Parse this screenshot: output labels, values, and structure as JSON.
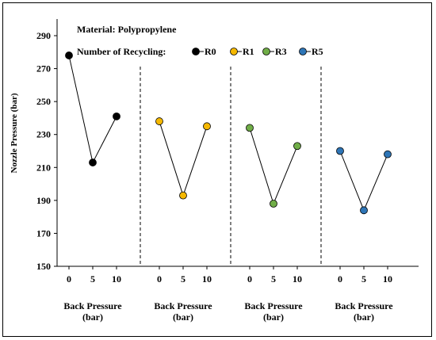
{
  "chart_data": {
    "type": "line",
    "ylabel": "Nozzle Pressure (bar)",
    "ylim": [
      150,
      290
    ],
    "yticks": [
      "150",
      "170",
      "190",
      "210",
      "230",
      "250",
      "270",
      "290"
    ],
    "annotations": {
      "material": "Material: Polypropylene",
      "legend_title": "Number of Recycling:"
    },
    "panels": [
      {
        "series": "R0",
        "color": "#000000",
        "x": [
          "0",
          "5",
          "10"
        ],
        "values": [
          278,
          213,
          241
        ],
        "xlabel_line1": "Back Pressure",
        "xlabel_line2": "(bar)"
      },
      {
        "series": "R1",
        "color": "#f5b800",
        "x": [
          "0",
          "5",
          "10"
        ],
        "values": [
          238,
          193,
          235
        ],
        "xlabel_line1": "Back Pressure",
        "xlabel_line2": "(bar)"
      },
      {
        "series": "R3",
        "color": "#70ad47",
        "x": [
          "0",
          "5",
          "10"
        ],
        "values": [
          234,
          188,
          223
        ],
        "xlabel_line1": "Back Pressure",
        "xlabel_line2": "(bar)"
      },
      {
        "series": "R5",
        "color": "#2e75b6",
        "x": [
          "0",
          "5",
          "10"
        ],
        "values": [
          220,
          184,
          218
        ],
        "xlabel_line1": "Back Pressure",
        "xlabel_line2": "(bar)"
      }
    ],
    "legend": [
      {
        "label": "R0",
        "color": "#000000"
      },
      {
        "label": "R1",
        "color": "#f5b800"
      },
      {
        "label": "R3",
        "color": "#70ad47"
      },
      {
        "label": "R5",
        "color": "#2e75b6"
      }
    ],
    "grid": false,
    "legend_position": "top"
  }
}
